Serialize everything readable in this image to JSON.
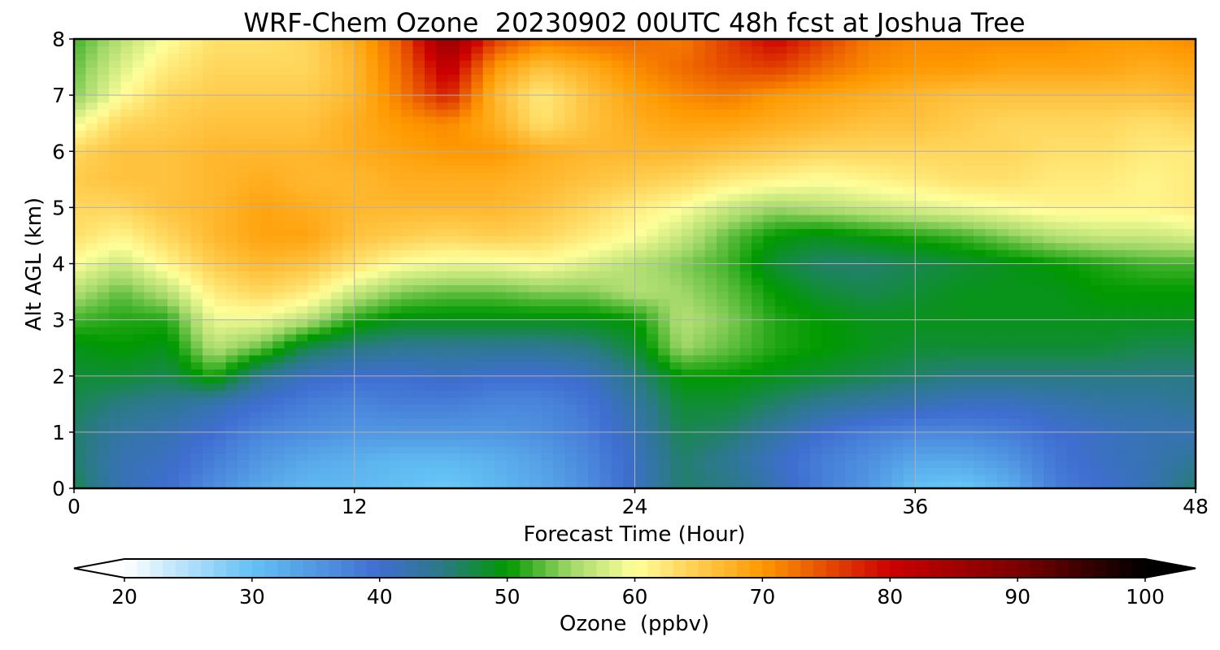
{
  "chart_data": {
    "type": "heatmap",
    "title": "WRF-Chem Ozone  20230902 00UTC 48h fcst at Joshua Tree",
    "xlabel": "Forecast Time (Hour)",
    "ylabel": "Alt AGL (km)",
    "xlim": [
      0,
      48
    ],
    "ylim": [
      0,
      8
    ],
    "x_ticks": [
      0,
      12,
      24,
      36,
      48
    ],
    "y_ticks": [
      0,
      1,
      2,
      3,
      4,
      5,
      6,
      7,
      8
    ],
    "grid": true,
    "x": [
      0,
      2,
      4,
      6,
      8,
      10,
      12,
      14,
      16,
      18,
      20,
      22,
      24,
      26,
      28,
      30,
      32,
      34,
      36,
      38,
      40,
      42,
      44,
      46,
      48
    ],
    "y": [
      0,
      0.5,
      1,
      1.5,
      2,
      2.5,
      3,
      3.5,
      4,
      4.5,
      5,
      5.5,
      6,
      6.5,
      7,
      7.5,
      8
    ],
    "z": [
      [
        47,
        42,
        40,
        36,
        33,
        31,
        31,
        30,
        29,
        31,
        33,
        36,
        41,
        46,
        45,
        42,
        38,
        35,
        30,
        29,
        32,
        38,
        40,
        42,
        46
      ],
      [
        46,
        42,
        41,
        38,
        35,
        33,
        32,
        31,
        31,
        32,
        34,
        37,
        41,
        46,
        44,
        41,
        38,
        36,
        33,
        33,
        35,
        39,
        41,
        42,
        44
      ],
      [
        46,
        43,
        42,
        40,
        37,
        36,
        35,
        35,
        35,
        35,
        36,
        38,
        42,
        47,
        46,
        43,
        40,
        38,
        37,
        37,
        38,
        40,
        41,
        42,
        42
      ],
      [
        47,
        45,
        44,
        42,
        40,
        38,
        37,
        38,
        38,
        37,
        37,
        39,
        43,
        48,
        48,
        46,
        44,
        43,
        42,
        41,
        41,
        42,
        43,
        43,
        44
      ],
      [
        48,
        48,
        47,
        51,
        44,
        41,
        40,
        40,
        41,
        40,
        40,
        41,
        45,
        50,
        50,
        49,
        48,
        47,
        46,
        45,
        45,
        45,
        45,
        45,
        45
      ],
      [
        49,
        50,
        49,
        56,
        53,
        47,
        45,
        44,
        44,
        44,
        44,
        45,
        48,
        55,
        53,
        51,
        50,
        49,
        48,
        48,
        48,
        48,
        48,
        47,
        47
      ],
      [
        52,
        51,
        51,
        59,
        59,
        56,
        51,
        49,
        49,
        49,
        49,
        49,
        50,
        56,
        54,
        51,
        50,
        49,
        49,
        49,
        49,
        49,
        49,
        49,
        49
      ],
      [
        56,
        53,
        56,
        62,
        64,
        62,
        57,
        54,
        53,
        53,
        54,
        54,
        56,
        55,
        53,
        50,
        48,
        47,
        48,
        49,
        49,
        49,
        50,
        50,
        50
      ],
      [
        60,
        57,
        61,
        65,
        67,
        66,
        63,
        60,
        59,
        59,
        60,
        58,
        56,
        54,
        52,
        48,
        46,
        46,
        47,
        48,
        49,
        50,
        51,
        52,
        52
      ],
      [
        63,
        61,
        64,
        67,
        69,
        69,
        66,
        65,
        64,
        65,
        64,
        62,
        60,
        57,
        53,
        50,
        49,
        50,
        51,
        52,
        54,
        56,
        57,
        57,
        58
      ],
      [
        64,
        64,
        66,
        67,
        69,
        68,
        67,
        67,
        67,
        67,
        66,
        64,
        62,
        60,
        57,
        55,
        56,
        57,
        58,
        59,
        60,
        61,
        61,
        61,
        62
      ],
      [
        65,
        66,
        66,
        67,
        68,
        67,
        67,
        68,
        68,
        68,
        67,
        66,
        65,
        64,
        62,
        61,
        60,
        61,
        62,
        63,
        63,
        62,
        62,
        61,
        62
      ],
      [
        64,
        66,
        66,
        67,
        67,
        67,
        68,
        69,
        70,
        70,
        68,
        67,
        67,
        67,
        66,
        65,
        64,
        64,
        64,
        64,
        64,
        63,
        63,
        62,
        62
      ],
      [
        59,
        64,
        65,
        66,
        66,
        66,
        68,
        70,
        71,
        68,
        63,
        66,
        68,
        69,
        69,
        68,
        67,
        66,
        66,
        65,
        64,
        64,
        64,
        63,
        64
      ],
      [
        54,
        60,
        64,
        65,
        65,
        65,
        67,
        72,
        78,
        67,
        62,
        66,
        69,
        71,
        72,
        70,
        69,
        68,
        67,
        66,
        66,
        66,
        66,
        66,
        67
      ],
      [
        53,
        58,
        62,
        64,
        64,
        64,
        67,
        73,
        82,
        70,
        66,
        68,
        71,
        73,
        75,
        76,
        73,
        71,
        70,
        70,
        69,
        69,
        69,
        68,
        69
      ],
      [
        52,
        56,
        60,
        63,
        63,
        64,
        68,
        74,
        87,
        76,
        72,
        73,
        73,
        72,
        76,
        80,
        76,
        72,
        71,
        71,
        71,
        71,
        70,
        70,
        71
      ]
    ],
    "colorbar": {
      "label": "Ozone  (ppbv)",
      "min": 20,
      "max": 100,
      "ticks": [
        20,
        30,
        40,
        50,
        60,
        70,
        80,
        90,
        100
      ],
      "extend": "both",
      "color_stops": [
        {
          "value": 20,
          "color": "#ffffff"
        },
        {
          "value": 30,
          "color": "#63c1f4"
        },
        {
          "value": 40,
          "color": "#3f6ed1"
        },
        {
          "value": 45,
          "color": "#2a7a85"
        },
        {
          "value": 50,
          "color": "#009900"
        },
        {
          "value": 55,
          "color": "#a2d86a"
        },
        {
          "value": 60,
          "color": "#ffff9a"
        },
        {
          "value": 70,
          "color": "#ff9900"
        },
        {
          "value": 80,
          "color": "#cc0000"
        },
        {
          "value": 90,
          "color": "#7a0000"
        },
        {
          "value": 100,
          "color": "#000000"
        }
      ]
    }
  }
}
